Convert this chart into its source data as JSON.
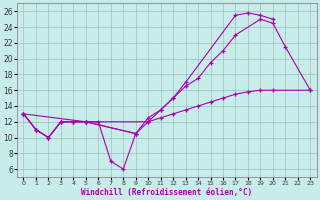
{
  "xlabel": "Windchill (Refroidissement éolien,°C)",
  "bg_color": "#c8ecea",
  "line_color": "#aa00aa",
  "xlim": [
    -0.5,
    23.5
  ],
  "ylim": [
    5.0,
    27.0
  ],
  "xticks": [
    0,
    1,
    2,
    3,
    4,
    5,
    6,
    7,
    8,
    9,
    10,
    11,
    12,
    13,
    14,
    15,
    16,
    17,
    18,
    19,
    20,
    21,
    22,
    23
  ],
  "yticks": [
    6,
    8,
    10,
    12,
    14,
    16,
    18,
    20,
    22,
    24,
    26
  ],
  "line1": {
    "x": [
      0,
      1,
      2,
      3,
      4,
      5,
      6,
      7,
      8,
      9
    ],
    "y": [
      13,
      11,
      10,
      12,
      12,
      12,
      12,
      7,
      6,
      10.5
    ]
  },
  "line2": {
    "x": [
      0,
      1,
      2,
      3,
      4,
      5,
      9,
      10,
      11,
      12,
      13,
      14,
      15,
      16,
      17,
      19,
      20,
      21,
      23
    ],
    "y": [
      13,
      11,
      10,
      12,
      12,
      12,
      10.5,
      12.5,
      13.5,
      15,
      16.5,
      17.5,
      19.5,
      21,
      23,
      25,
      24.5,
      21.5,
      16
    ]
  },
  "line3": {
    "x": [
      0,
      1,
      2,
      3,
      4,
      5,
      9,
      10,
      11,
      12,
      13,
      17,
      18,
      19,
      20
    ],
    "y": [
      13,
      11,
      10,
      12,
      12,
      12,
      10.5,
      12,
      13.5,
      15,
      17,
      25.5,
      25.8,
      25.5,
      25
    ]
  },
  "line4": {
    "x": [
      0,
      5,
      10,
      11,
      12,
      13,
      14,
      15,
      16,
      17,
      18,
      19,
      20,
      23
    ],
    "y": [
      13,
      12,
      12,
      12.5,
      13,
      13.5,
      14,
      14.5,
      15,
      15.5,
      15.8,
      16,
      16,
      16
    ]
  }
}
